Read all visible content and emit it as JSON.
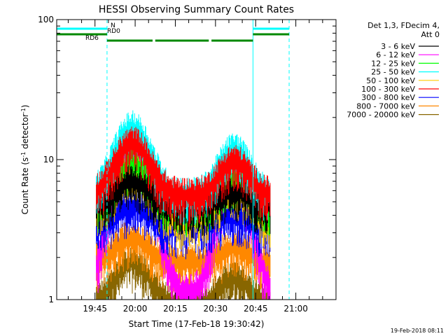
{
  "chart_data": {
    "type": "line",
    "title": "HESSI Observing Summary Count Rates",
    "xlabel": "Start Time (17-Feb-18 19:30:42)",
    "ylabel": "Count Rate (s",
    "ylabel_sup": "-1",
    "ylabel_mid": " detector",
    "ylabel_sup2": "-1",
    "ylabel_end": ")",
    "y_scale": "log",
    "ylim": [
      1,
      100
    ],
    "y_ticks": [
      {
        "v": 1,
        "label": "1"
      },
      {
        "v": 10,
        "label": "10"
      },
      {
        "v": 100,
        "label": "100"
      }
    ],
    "x_ticks": [
      "19:45",
      "20:00",
      "20:15",
      "20:30",
      "20:45",
      "21:00"
    ],
    "x_tick_minutes": [
      45,
      60,
      75,
      90,
      105,
      120
    ],
    "xlim_minutes": [
      30.7,
      135
    ],
    "legend_header": [
      "Det 1,3, FDecim 4,",
      "Att 0"
    ],
    "series": [
      {
        "name": "3 - 6 keV",
        "color": "#000000",
        "peak": 7.5,
        "base": 5.0
      },
      {
        "name": "6 - 12 keV",
        "color": "#ff00ff",
        "peak": 12.0,
        "base": 1.2
      },
      {
        "name": "12 - 25 keV",
        "color": "#00ff00",
        "peak": 10.0,
        "base": 5.0
      },
      {
        "name": "25 - 50 keV",
        "color": "#00ffff",
        "peak": 18.0,
        "base": 6.0
      },
      {
        "name": "50 - 100 keV",
        "color": "#ffcc00",
        "peak": 9.0,
        "base": 4.0
      },
      {
        "name": "100 - 300 keV",
        "color": "#ff0000",
        "peak": 14.0,
        "base": 6.0
      },
      {
        "name": "300 - 800 keV",
        "color": "#0000ff",
        "peak": 5.0,
        "base": 3.5
      },
      {
        "name": "800 - 7000 keV",
        "color": "#ff8800",
        "peak": 3.0,
        "base": 2.0
      },
      {
        "name": "7000 - 20000 keV",
        "color": "#886600",
        "peak": 2.0,
        "base": 1.0
      }
    ],
    "data_start_minute": 45.5,
    "data_end_minute": 110.5,
    "flags": [
      {
        "label": "N",
        "color": "#00ffff",
        "segments": [
          [
            30.7,
            49.5
          ],
          [
            104,
            117.5
          ]
        ]
      },
      {
        "label": "RD0",
        "color": "#008800",
        "segments": [
          [
            30.7,
            49.5
          ],
          [
            104,
            117.5
          ]
        ]
      },
      {
        "label": "RD6",
        "color": "#008800",
        "segments": [
          [
            49.5,
            66.5
          ],
          [
            67.5,
            87.5
          ],
          [
            88.5,
            104
          ]
        ]
      }
    ],
    "vertical_lines": [
      {
        "minute": 30.7,
        "color": "#00ffff",
        "style": "solid"
      },
      {
        "minute": 49.5,
        "color": "#00ffff",
        "style": "dashed"
      },
      {
        "minute": 104,
        "color": "#00ffff",
        "style": "solid"
      },
      {
        "minute": 117.5,
        "color": "#00ffff",
        "style": "dashed"
      }
    ]
  },
  "footer": "19-Feb-2018 08:11"
}
